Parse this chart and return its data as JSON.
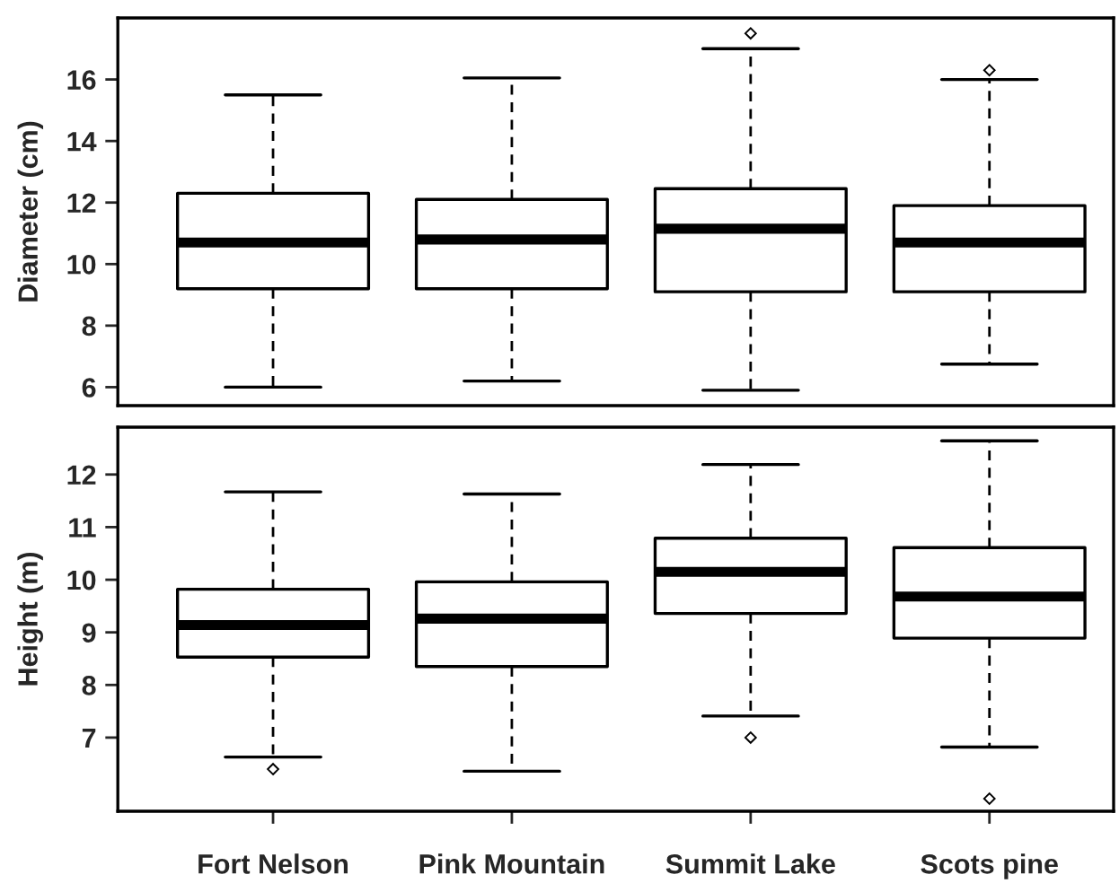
{
  "chart_data": [
    {
      "type": "box",
      "ylabel": "Diameter (cm)",
      "ylim": [
        5.4,
        18
      ],
      "yticks": [
        6,
        8,
        10,
        12,
        14,
        16
      ],
      "tick_labels": "y",
      "grid": false,
      "legend": false,
      "boxes": [
        {
          "low": 6.0,
          "q1": 9.2,
          "median": 10.7,
          "q3": 12.3,
          "high": 15.5
        },
        {
          "low": 6.2,
          "q1": 9.2,
          "median": 10.8,
          "q3": 12.1,
          "high": 16.05
        },
        {
          "low": 5.9,
          "q1": 9.1,
          "median": 11.15,
          "q3": 12.45,
          "high": 17.0,
          "outliers": [
            17.5
          ]
        },
        {
          "low": 6.75,
          "q1": 9.1,
          "median": 10.7,
          "q3": 11.9,
          "high": 16.0,
          "outliers": [
            16.3
          ]
        }
      ]
    },
    {
      "type": "box",
      "ylabel": "Height (m)",
      "categories": [
        "Fort Nelson",
        "Pink Mountain",
        "Summit Lake",
        "Scots pine"
      ],
      "ylim": [
        5.6,
        12.9
      ],
      "yticks": [
        7,
        8,
        9,
        10,
        11,
        12
      ],
      "grid": false,
      "legend": false,
      "boxes": [
        {
          "low": 6.63,
          "q1": 8.53,
          "median": 9.14,
          "q3": 9.82,
          "high": 11.67,
          "outliers": [
            6.4
          ]
        },
        {
          "low": 6.36,
          "q1": 8.35,
          "median": 9.26,
          "q3": 9.96,
          "high": 11.63
        },
        {
          "low": 7.41,
          "q1": 9.36,
          "median": 10.15,
          "q3": 10.79,
          "high": 12.19,
          "outliers": [
            7.0
          ]
        },
        {
          "low": 6.82,
          "q1": 8.89,
          "median": 9.68,
          "q3": 10.61,
          "high": 12.64,
          "outliers": [
            5.84
          ]
        }
      ]
    }
  ]
}
